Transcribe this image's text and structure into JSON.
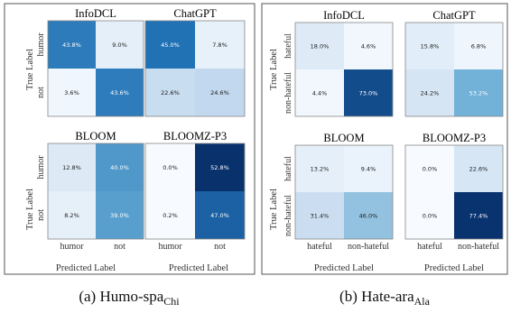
{
  "chart_data": [
    {
      "type": "heatmap",
      "title": "InfoDCL",
      "xlabel": "Predicted Label",
      "ylabel": "True Label",
      "x_categories": [
        "humor",
        "not"
      ],
      "y_categories": [
        "humor",
        "not"
      ],
      "cells": [
        [
          "43.8%",
          "9.0%"
        ],
        [
          "3.6%",
          "43.6%"
        ]
      ],
      "values": [
        [
          43.8,
          9.0
        ],
        [
          3.6,
          43.6
        ]
      ]
    },
    {
      "type": "heatmap",
      "title": "ChatGPT",
      "xlabel": "Predicted Label",
      "ylabel": "True Label",
      "x_categories": [
        "humor",
        "not"
      ],
      "y_categories": [
        "humor",
        "not"
      ],
      "cells": [
        [
          "45.0%",
          "7.8%"
        ],
        [
          "22.6%",
          "24.6%"
        ]
      ],
      "values": [
        [
          45.0,
          7.8
        ],
        [
          22.6,
          24.6
        ]
      ]
    },
    {
      "type": "heatmap",
      "title": "BLOOM",
      "xlabel": "Predicted Label",
      "ylabel": "True Label",
      "x_categories": [
        "humor",
        "not"
      ],
      "y_categories": [
        "humor",
        "not"
      ],
      "cells": [
        [
          "12.8%",
          "40.0%"
        ],
        [
          "8.2%",
          "39.0%"
        ]
      ],
      "values": [
        [
          12.8,
          40.0
        ],
        [
          8.2,
          39.0
        ]
      ]
    },
    {
      "type": "heatmap",
      "title": "BLOOMZ-P3",
      "xlabel": "Predicted Label",
      "ylabel": "True Label",
      "x_categories": [
        "humor",
        "not"
      ],
      "y_categories": [
        "humor",
        "not"
      ],
      "cells": [
        [
          "0.0%",
          "52.8%"
        ],
        [
          "0.2%",
          "47.0%"
        ]
      ],
      "values": [
        [
          0.0,
          52.8
        ],
        [
          0.2,
          47.0
        ]
      ]
    },
    {
      "type": "heatmap",
      "title": "InfoDCL",
      "xlabel": "Predicted Label",
      "ylabel": "True Label",
      "x_categories": [
        "hateful",
        "non-hateful"
      ],
      "y_categories": [
        "hateful",
        "non-hateful"
      ],
      "cells": [
        [
          "18.0%",
          "4.6%"
        ],
        [
          "4.4%",
          "73.0%"
        ]
      ],
      "values": [
        [
          18.0,
          4.6
        ],
        [
          4.4,
          73.0
        ]
      ]
    },
    {
      "type": "heatmap",
      "title": "ChatGPT",
      "xlabel": "Predicted Label",
      "ylabel": "True Label",
      "x_categories": [
        "hateful",
        "non-hateful"
      ],
      "y_categories": [
        "hateful",
        "non-hateful"
      ],
      "cells": [
        [
          "15.8%",
          "6.8%"
        ],
        [
          "24.2%",
          "53.2%"
        ]
      ],
      "values": [
        [
          15.8,
          6.8
        ],
        [
          24.2,
          53.2
        ]
      ]
    },
    {
      "type": "heatmap",
      "title": "BLOOM",
      "xlabel": "Predicted Label",
      "ylabel": "True Label",
      "x_categories": [
        "hateful",
        "non-hateful"
      ],
      "y_categories": [
        "hateful",
        "non-hateful"
      ],
      "cells": [
        [
          "13.2%",
          "9.4%"
        ],
        [
          "31.4%",
          "46.0%"
        ]
      ],
      "values": [
        [
          13.2,
          9.4
        ],
        [
          31.4,
          46.0
        ]
      ]
    },
    {
      "type": "heatmap",
      "title": "BLOOMZ-P3",
      "xlabel": "Predicted Label",
      "ylabel": "True Label",
      "x_categories": [
        "hateful",
        "non-hateful"
      ],
      "y_categories": [
        "hateful",
        "non-hateful"
      ],
      "cells": [
        [
          "0.0%",
          "22.6%"
        ],
        [
          "0.0%",
          "77.4%"
        ]
      ],
      "values": [
        [
          0.0,
          22.6
        ],
        [
          0.0,
          77.4
        ]
      ]
    }
  ],
  "captions": {
    "a": {
      "main": "(a) Humo-spa",
      "sub": "Chi"
    },
    "b": {
      "main": "(b) Hate-ara",
      "sub": "Ala"
    }
  },
  "colormap": {
    "low": "#f7fbff",
    "mid": "#6baed6",
    "high": "#08306b"
  }
}
